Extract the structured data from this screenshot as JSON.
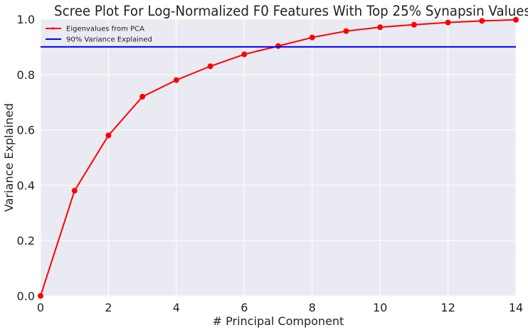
{
  "chart_data": {
    "type": "line",
    "title": "Scree Plot For Log-Normalized F0 Features With Top 25% Synapsin Values",
    "xlabel": "# Principal Component",
    "ylabel": "Variance Explained",
    "xlim": [
      0,
      14
    ],
    "ylim": [
      0,
      1.0
    ],
    "x_ticks": [
      "0",
      "2",
      "4",
      "6",
      "8",
      "10",
      "12",
      "14"
    ],
    "y_ticks": [
      "0.0",
      "0.2",
      "0.4",
      "0.6",
      "0.8",
      "1.0"
    ],
    "grid": true,
    "legend_position": "top-left",
    "series": [
      {
        "name": "Eigenvalues from PCA",
        "color": "#ff0000",
        "marker": "circle",
        "x": [
          0,
          1,
          2,
          3,
          4,
          5,
          6,
          7,
          8,
          9,
          10,
          11,
          12,
          13,
          14
        ],
        "y": [
          0.0,
          0.38,
          0.58,
          0.72,
          0.78,
          0.83,
          0.873,
          0.903,
          0.934,
          0.957,
          0.971,
          0.98,
          0.988,
          0.994,
          0.998
        ]
      },
      {
        "name": "90% Variance Explained",
        "color": "#0000ff",
        "marker": "none",
        "x": [
          0,
          14
        ],
        "y": [
          0.9,
          0.9
        ]
      }
    ],
    "background_color": "#eaeaf2",
    "grid_color": "#ffffff"
  }
}
